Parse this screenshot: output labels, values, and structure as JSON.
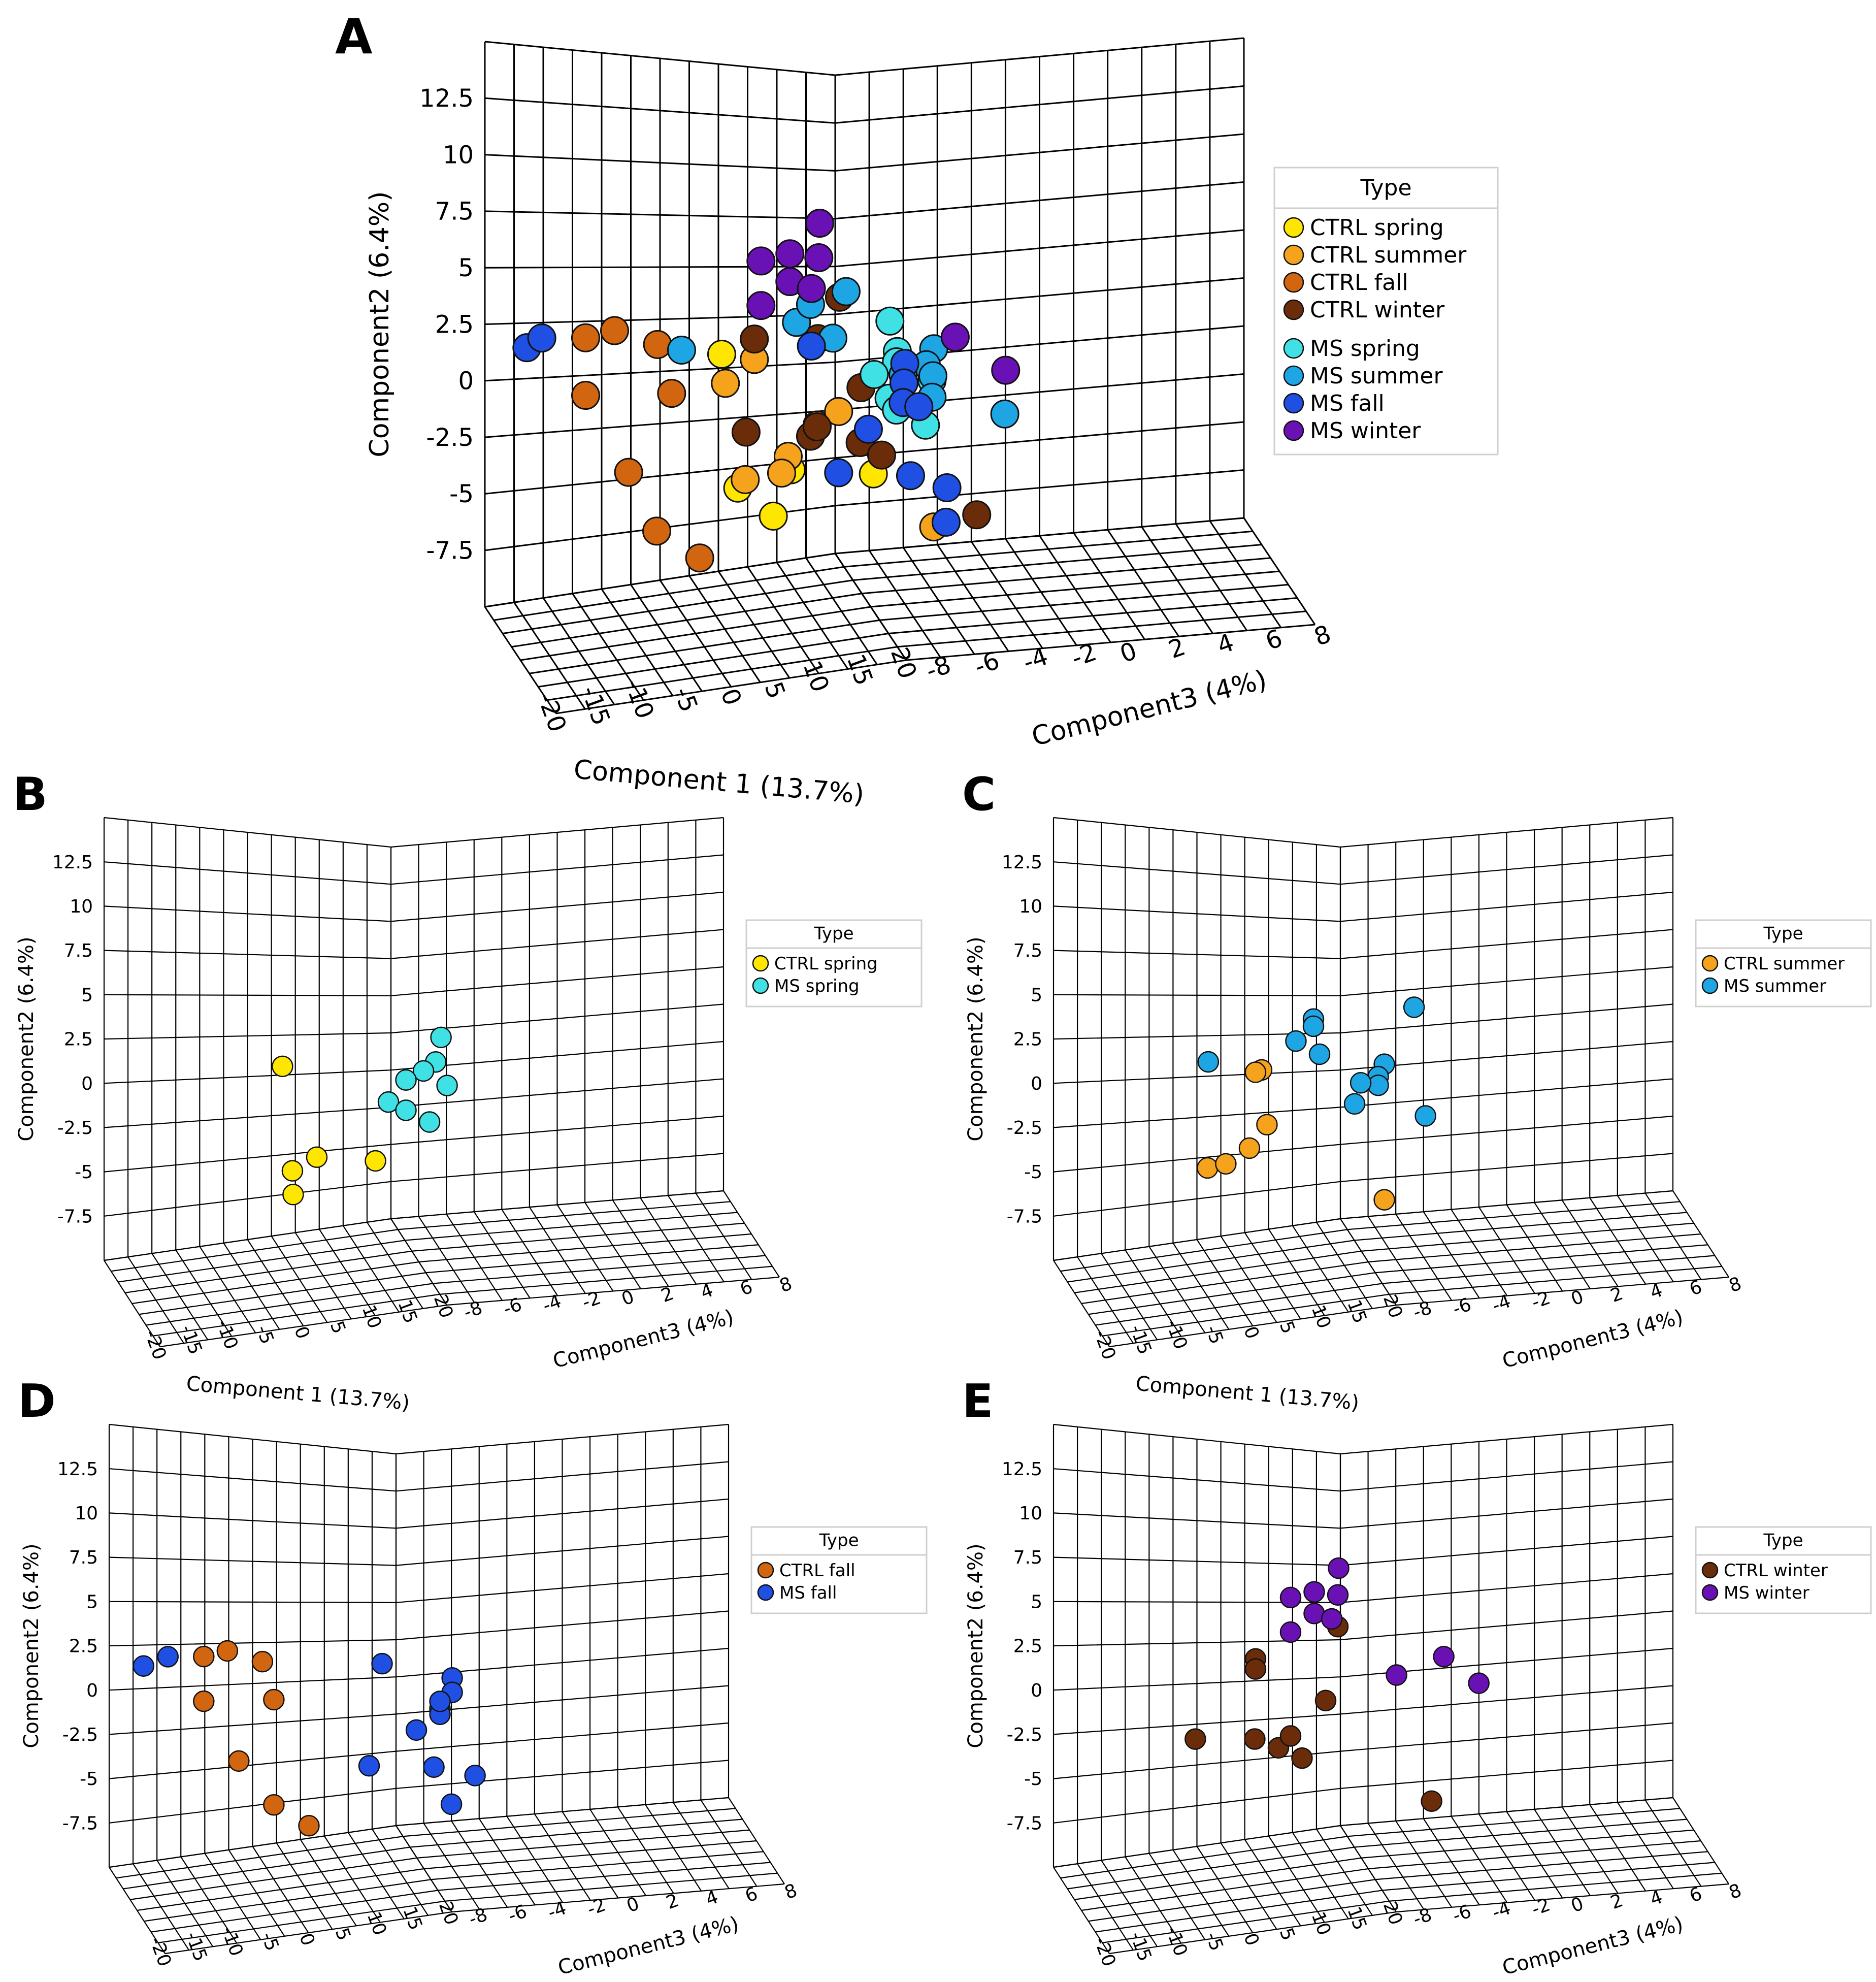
{
  "figure": {
    "panels": [
      "A",
      "B",
      "C",
      "D",
      "E"
    ],
    "legend_title": "Type",
    "colors": {
      "CTRL spring": "#ffe600",
      "CTRL summer": "#f5a31d",
      "CTRL fall": "#d2650f",
      "CTRL winter": "#6b2c0a",
      "MS spring": "#3fe1e5",
      "MS summer": "#1ea5e3",
      "MS fall": "#1f4fe3",
      "MS winter": "#6a11b5"
    }
  },
  "chart_data": [
    {
      "type": "scatter",
      "panel": "A",
      "title": "",
      "xlabel": "Component 1 (13.7%)",
      "ylabel": "Component2 (6.4%)",
      "zlabel": "Component3 (4%)",
      "xticks": [
        "-20",
        "-15",
        "-10",
        "-5",
        "0",
        "5",
        "10",
        "15",
        "20"
      ],
      "yticks": [
        "12.5",
        "10",
        "7.5",
        "5",
        "2.5",
        "0",
        "-2.5",
        "-5",
        "-7.5"
      ],
      "zticks": [
        "-8",
        "-6",
        "-4",
        "-2",
        "0",
        "2",
        "4",
        "6",
        "8"
      ],
      "xlim": [
        -20,
        20
      ],
      "ylim": [
        -10,
        15
      ],
      "zlim": [
        -8,
        8
      ],
      "legend_title": "Type",
      "legend": [
        "CTRL spring",
        "CTRL summer",
        "CTRL fall",
        "CTRL winter",
        "MS spring",
        "MS summer",
        "MS fall",
        "MS winter"
      ],
      "series": [
        {
          "name": "CTRL spring",
          "points": [
            [
              0.5,
              2.6,
              -6
            ],
            [
              -3,
              -4.6,
              -3
            ],
            [
              -1.5,
              -3.9,
              0
            ],
            [
              -2,
              -6.3,
              -1
            ],
            [
              2,
              -4.6,
              4
            ]
          ]
        },
        {
          "name": "CTRL summer",
          "points": [
            [
              3,
              2.1,
              -5
            ],
            [
              2,
              -1.7,
              0
            ],
            [
              0,
              -3.2,
              -1
            ],
            [
              -2,
              -4.2,
              -3
            ],
            [
              1,
              -4.1,
              -2
            ],
            [
              3,
              -1.1,
              1
            ],
            [
              12,
              -8,
              3
            ],
            [
              1,
              1,
              -6
            ]
          ]
        },
        {
          "name": "CTRL fall",
          "points": [
            [
              -14,
              4.5,
              -8
            ],
            [
              -12,
              4.7,
              -7
            ],
            [
              -10,
              3.7,
              -5
            ],
            [
              -14,
              1.4,
              -8
            ],
            [
              -10,
              1,
              -4
            ],
            [
              -12,
              -3,
              -6
            ],
            [
              -12,
              -6.3,
              -4
            ],
            [
              -10,
              -8,
              -2
            ]
          ]
        },
        {
          "name": "CTRL winter",
          "points": [
            [
              3,
              3.2,
              -5
            ],
            [
              5,
              5,
              0
            ],
            [
              6,
              0,
              1
            ],
            [
              0,
              -1.7,
              -4
            ],
            [
              3,
              -2.3,
              -1
            ],
            [
              4,
              -2.9,
              2
            ],
            [
              5,
              -3.7,
              3
            ],
            [
              14,
              -7.6,
              5
            ],
            [
              4,
              2.9,
              -1
            ],
            [
              2,
              -1.8,
              0
            ]
          ]
        },
        {
          "name": "MS spring",
          "points": [
            [
              8,
              3.4,
              2
            ],
            [
              9,
              1.7,
              2
            ],
            [
              7,
              1.2,
              3
            ],
            [
              4,
              0.7,
              3
            ],
            [
              6,
              -0.7,
              3
            ],
            [
              7,
              -1.4,
              3
            ],
            [
              9,
              -2.4,
              4
            ],
            [
              8,
              0,
              5
            ]
          ]
        },
        {
          "name": "MS summer",
          "points": [
            [
              -3,
              3.1,
              -7
            ],
            [
              4,
              5.3,
              1
            ],
            [
              3,
              3.9,
              -2
            ],
            [
              6,
              2.8,
              -1
            ],
            [
              12,
              1.6,
              3
            ],
            [
              11,
              0.8,
              3
            ],
            [
              10,
              0.2,
              4
            ],
            [
              8,
              -0.9,
              5
            ],
            [
              14,
              -2.3,
              7
            ],
            [
              3,
              4.8,
              -1
            ],
            [
              6,
              0.5,
              4
            ]
          ]
        },
        {
          "name": "MS fall",
          "points": [
            [
              -20,
              4.4,
              -9
            ],
            [
              -18,
              4.8,
              -9
            ],
            [
              5,
              2.5,
              -2
            ],
            [
              10,
              1,
              2
            ],
            [
              8,
              0,
              3
            ],
            [
              6,
              -1,
              4
            ],
            [
              7,
              -2.3,
              1
            ],
            [
              3,
              -4.4,
              1
            ],
            [
              7,
              -5,
              4
            ],
            [
              10,
              -5.9,
              5
            ],
            [
              8,
              -7.7,
              6
            ],
            [
              10,
              -1.4,
              3
            ]
          ]
        },
        {
          "name": "MS winter",
          "points": [
            [
              8,
              9,
              -3
            ],
            [
              2,
              7.4,
              -4
            ],
            [
              6,
              7.2,
              -2
            ],
            [
              4,
              6.1,
              -3
            ],
            [
              5,
              5.6,
              -2
            ],
            [
              2,
              5,
              -4
            ],
            [
              13,
              2.1,
              4
            ],
            [
              16,
              0,
              6
            ],
            [
              4,
              7.6,
              -3
            ]
          ]
        }
      ]
    },
    {
      "type": "scatter",
      "panel": "B",
      "xlabel": "Component 1 (13.7%)",
      "ylabel": "Component2 (6.4%)",
      "zlabel": "Component3 (4%)",
      "xlim": [
        -20,
        20
      ],
      "ylim": [
        -10,
        15
      ],
      "zlim": [
        -8,
        8
      ],
      "legend_title": "Type",
      "legend": [
        "CTRL spring",
        "MS spring"
      ],
      "series": [
        {
          "name": "CTRL spring",
          "points": [
            [
              -2,
              2.6,
              -6
            ],
            [
              -6,
              -4.6,
              -3
            ],
            [
              -2,
              -3.9,
              -3
            ],
            [
              -4,
              -6.3,
              -4
            ],
            [
              2,
              -4.6,
              0
            ]
          ]
        },
        {
          "name": "MS spring",
          "points": [
            [
              9,
              3.4,
              2
            ],
            [
              10,
              1.7,
              1
            ],
            [
              8,
              1.2,
              1
            ],
            [
              7,
              0.7,
              0
            ],
            [
              6,
              -0.7,
              -1
            ],
            [
              7,
              -1.4,
              0
            ],
            [
              9,
              -2.4,
              1
            ],
            [
              10,
              0,
              2
            ]
          ]
        }
      ]
    },
    {
      "type": "scatter",
      "panel": "C",
      "xlabel": "Component 1 (13.7%)",
      "ylabel": "Component2 (6.4%)",
      "zlabel": "Component3 (4%)",
      "xlim": [
        -20,
        20
      ],
      "ylim": [
        -10,
        15
      ],
      "zlim": [
        -8,
        8
      ],
      "legend_title": "Type",
      "legend": [
        "CTRL summer",
        "MS summer"
      ],
      "series": [
        {
          "name": "CTRL summer",
          "points": [
            [
              1,
              2.1,
              -5
            ],
            [
              0,
              2,
              -5
            ],
            [
              0,
              -1.7,
              -4
            ],
            [
              -1,
              -3.2,
              -5
            ],
            [
              -6,
              -4.2,
              -6
            ],
            [
              -3,
              -4.1,
              -6
            ],
            [
              8,
              -7.8,
              2
            ]
          ]
        },
        {
          "name": "MS summer",
          "points": [
            [
              -4,
              3.1,
              -7
            ],
            [
              2,
              5.3,
              -1
            ],
            [
              1,
              3.9,
              -2
            ],
            [
              3,
              2.8,
              -1
            ],
            [
              8,
              1.6,
              2
            ],
            [
              7,
              0.8,
              2
            ],
            [
              7,
              0.2,
              2
            ],
            [
              5,
              -0.9,
              1
            ],
            [
              11,
              -2.3,
              4
            ],
            [
              2,
              4.8,
              -1
            ],
            [
              11,
              5.3,
              3
            ],
            [
              6,
              0.5,
              1
            ]
          ]
        }
      ]
    },
    {
      "type": "scatter",
      "panel": "D",
      "xlabel": "Component 1 (13.7%)",
      "ylabel": "Component2 (6.4%)",
      "zlabel": "Component3 (4%)",
      "xlim": [
        -20,
        20
      ],
      "ylim": [
        -10,
        15
      ],
      "zlim": [
        -8,
        8
      ],
      "legend_title": "Type",
      "legend": [
        "CTRL fall",
        "MS fall"
      ],
      "series": [
        {
          "name": "CTRL fall",
          "points": [
            [
              -12,
              4.5,
              -8
            ],
            [
              -10,
              4.7,
              -7
            ],
            [
              -8,
              3.7,
              -5
            ],
            [
              -12,
              1.4,
              -8
            ],
            [
              -8,
              1,
              -4
            ],
            [
              -10,
              -3,
              -6
            ],
            [
              -8,
              -6.3,
              -4
            ],
            [
              -6,
              -8,
              -2
            ]
          ]
        },
        {
          "name": "MS fall",
          "points": [
            [
              -20,
              4.4,
              -9
            ],
            [
              -16,
              4.8,
              -9
            ],
            [
              6,
              2.5,
              -2
            ],
            [
              10,
              1,
              2
            ],
            [
              10,
              0,
              2
            ],
            [
              8,
              -1,
              2
            ],
            [
              6,
              -2.3,
              1
            ],
            [
              2,
              -4.4,
              -1
            ],
            [
              7,
              -5,
              2
            ],
            [
              10,
              -5.9,
              4
            ],
            [
              8,
              -7.7,
              3
            ],
            [
              8,
              -1.4,
              2
            ],
            [
              8,
              -0.5,
              2
            ]
          ]
        }
      ]
    },
    {
      "type": "scatter",
      "panel": "E",
      "xlabel": "Component 1 (13.7%)",
      "ylabel": "Component2 (6.4%)",
      "zlabel": "Component3 (4%)",
      "xlim": [
        -20,
        20
      ],
      "ylim": [
        -10,
        15
      ],
      "zlim": [
        -8,
        8
      ],
      "legend_title": "Type",
      "legend": [
        "CTRL winter",
        "MS winter"
      ],
      "series": [
        {
          "name": "CTRL winter",
          "points": [
            [
              0,
              3.4,
              -5
            ],
            [
              0,
              2.7,
              -5
            ],
            [
              6,
              5,
              -1
            ],
            [
              4,
              0,
              -1
            ],
            [
              -8,
              -1.6,
              -6
            ],
            [
              -2,
              -2.1,
              -4
            ],
            [
              0,
              -2.9,
              -3
            ],
            [
              2,
              -3.8,
              -2
            ],
            [
              12,
              -7.8,
              4
            ],
            [
              2,
              -2.2,
              -3
            ]
          ]
        },
        {
          "name": "MS winter",
          "points": [
            [
              8,
              9,
              -2
            ],
            [
              2,
              7.4,
              -3
            ],
            [
              6,
              7.2,
              -1
            ],
            [
              4,
              6.1,
              -2
            ],
            [
              5,
              5.6,
              -1
            ],
            [
              2,
              5,
              -3
            ],
            [
              14,
              2.1,
              4
            ],
            [
              16,
              0,
              6
            ],
            [
              4,
              7.6,
              -2
            ],
            [
              10,
              1.2,
              2
            ]
          ]
        }
      ]
    }
  ]
}
